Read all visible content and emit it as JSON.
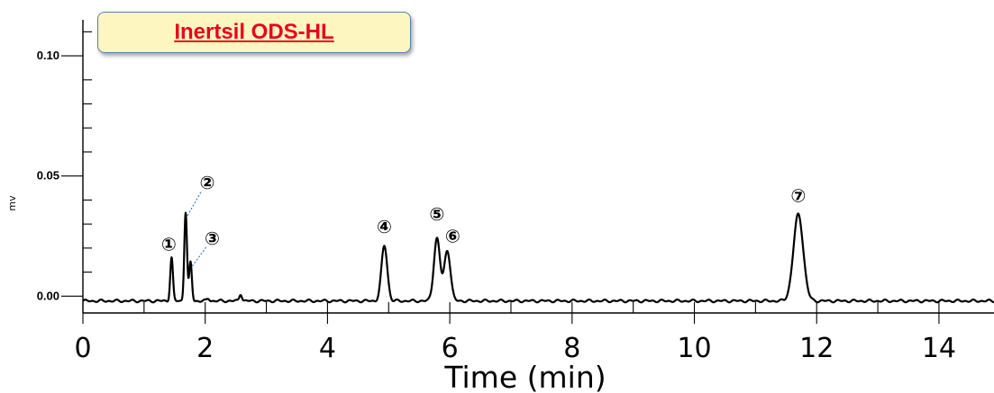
{
  "chart_data": {
    "type": "line",
    "title": "Inertsil ODS-HL",
    "xlabel": "Time (min)",
    "ylabel": "mv",
    "xlim": [
      0,
      14.9
    ],
    "ylim": [
      -0.007,
      0.115
    ],
    "x_ticks": [
      "0",
      "2",
      "4",
      "6",
      "8",
      "10",
      "12",
      "14"
    ],
    "y_ticks": [
      "0.00",
      "0.05",
      "0.10"
    ],
    "baseline": -0.002,
    "peaks": [
      {
        "label": "①",
        "rt": 1.45,
        "height": 0.018
      },
      {
        "label": "②",
        "rt": 1.68,
        "height": 0.037
      },
      {
        "label": "③",
        "rt": 1.76,
        "height": 0.016
      },
      {
        "label": "④",
        "rt": 4.93,
        "height": 0.023
      },
      {
        "label": "⑤",
        "rt": 5.79,
        "height": 0.026
      },
      {
        "label": "⑥",
        "rt": 5.96,
        "height": 0.021
      },
      {
        "label": "⑦",
        "rt": 11.7,
        "height": 0.036
      }
    ],
    "minor_peaks": [
      {
        "rt": 2.05,
        "height": 0.001
      },
      {
        "rt": 2.58,
        "height": 0.003
      }
    ]
  }
}
